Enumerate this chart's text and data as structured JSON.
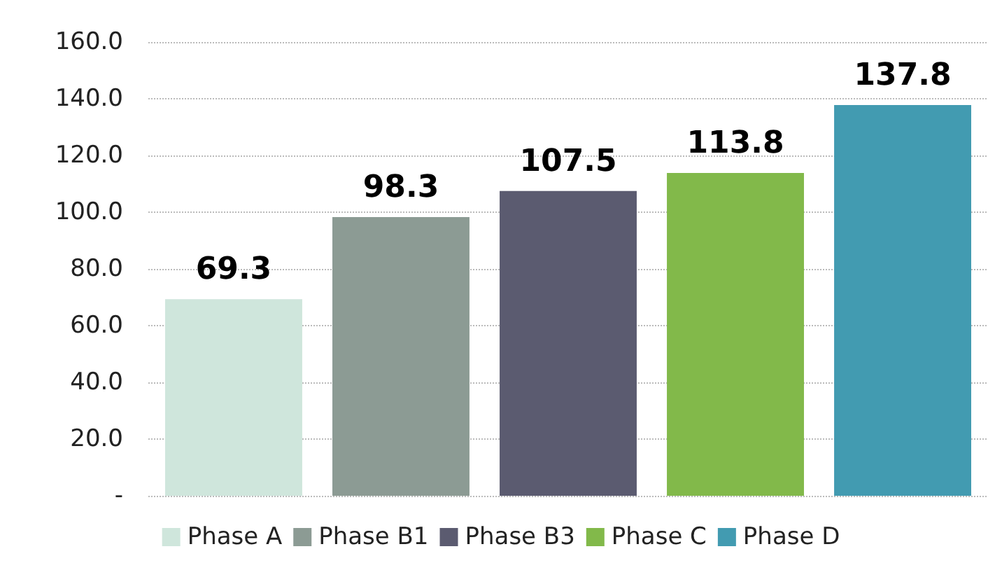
{
  "chart_data": {
    "type": "bar",
    "categories": [
      null
    ],
    "series": [
      {
        "name": "Phase A",
        "color": "#cfe6dc",
        "values": [
          69.3
        ]
      },
      {
        "name": "Phase B1",
        "color": "#8c9b94",
        "values": [
          98.3
        ]
      },
      {
        "name": "Phase B3",
        "color": "#5b5b70",
        "values": [
          107.5
        ]
      },
      {
        "name": "Phase C",
        "color": "#82b94a",
        "values": [
          113.8
        ]
      },
      {
        "name": "Phase D",
        "color": "#429bb1",
        "values": [
          137.8
        ]
      }
    ],
    "ylim": [
      0,
      160
    ],
    "yticks": [
      {
        "value": 0,
        "label": "-"
      },
      {
        "value": 20,
        "label": "20.0"
      },
      {
        "value": 40,
        "label": "40.0"
      },
      {
        "value": 60,
        "label": "60.0"
      },
      {
        "value": 80,
        "label": "80.0"
      },
      {
        "value": 100,
        "label": "100.0"
      },
      {
        "value": 120,
        "label": "120.0"
      },
      {
        "value": 140,
        "label": "140.0"
      },
      {
        "value": 160,
        "label": "160.0"
      }
    ],
    "grid": "y",
    "legend": "bottom",
    "data_labels": true
  }
}
